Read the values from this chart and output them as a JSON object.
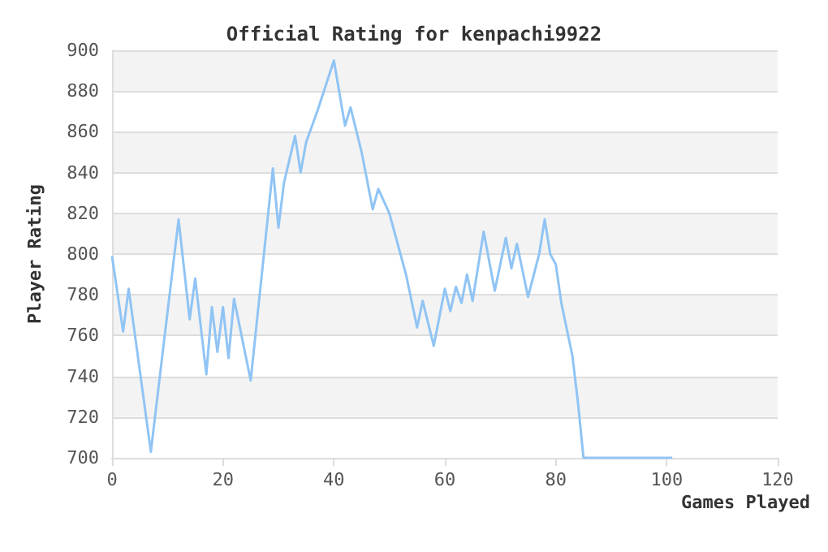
{
  "chart_data": {
    "type": "line",
    "title": "Official Rating for kenpachi9922",
    "xlabel": "Games Played",
    "ylabel": "Player Rating",
    "x": [
      0,
      2,
      3,
      7,
      12,
      14,
      15,
      17,
      18,
      19,
      20,
      21,
      22,
      25,
      29,
      30,
      31,
      33,
      34,
      35,
      37,
      40,
      42,
      43,
      45,
      47,
      48,
      50,
      53,
      55,
      56,
      58,
      60,
      61,
      62,
      63,
      64,
      65,
      67,
      69,
      71,
      72,
      73,
      75,
      77,
      78,
      79,
      80,
      81,
      83,
      84,
      85,
      101
    ],
    "series": [
      {
        "color": "#90c4f4",
        "values": [
          799,
          762,
          783,
          703,
          817,
          768,
          788,
          741,
          774,
          752,
          774,
          749,
          778,
          738,
          842,
          813,
          835,
          858,
          840,
          855,
          870,
          895,
          863,
          872,
          850,
          822,
          832,
          820,
          790,
          764,
          777,
          755,
          783,
          772,
          784,
          776,
          790,
          777,
          811,
          782,
          808,
          793,
          805,
          779,
          800,
          817,
          800,
          795,
          776,
          750,
          727,
          700,
          700
        ]
      }
    ],
    "xlim": [
      0,
      120
    ],
    "xticks": [
      0,
      20,
      40,
      60,
      80,
      100,
      120
    ],
    "ylim": [
      700,
      900
    ],
    "yticks": [
      700,
      720,
      740,
      760,
      780,
      800,
      820,
      840,
      860,
      880,
      900
    ],
    "grid": "y",
    "marker": "none",
    "line_style": "solid"
  }
}
